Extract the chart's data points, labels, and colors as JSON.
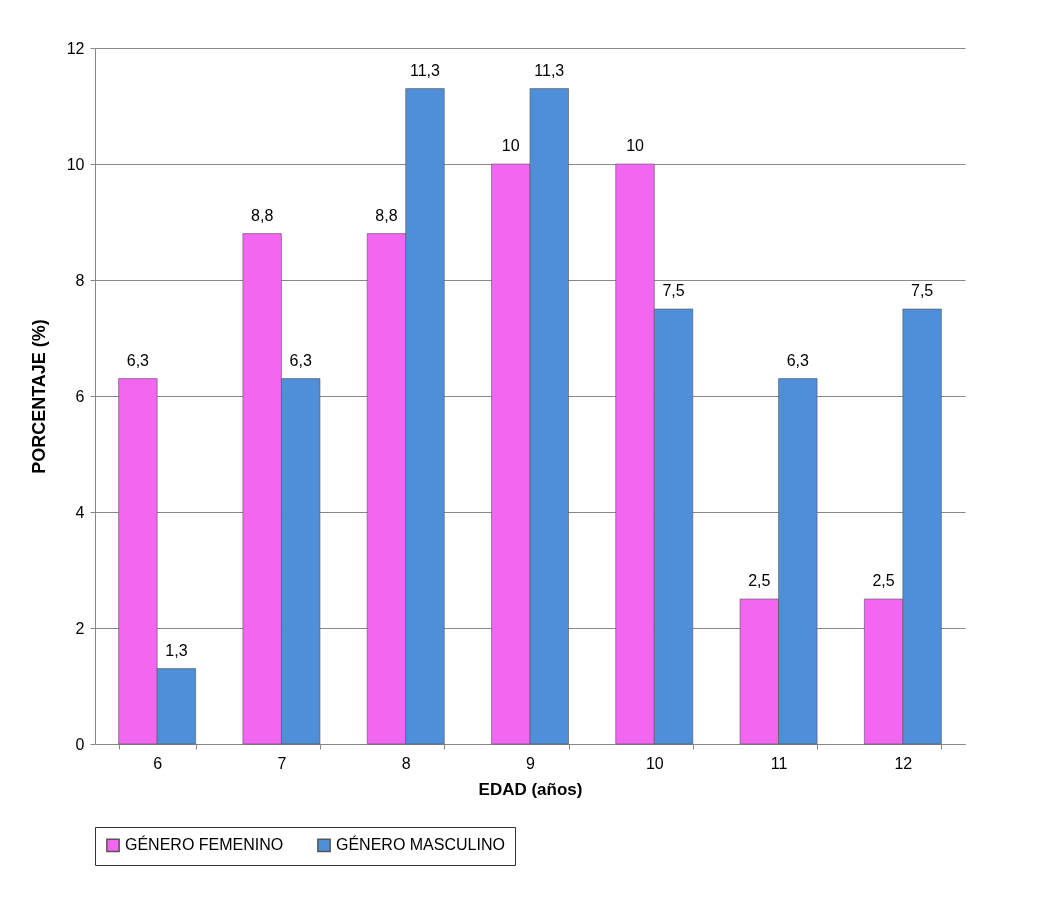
{
  "chart_data": {
    "type": "bar",
    "xlabel": "EDAD  (años)",
    "ylabel": "PORCENTAJE (%)",
    "categories": [
      "6",
      "7",
      "8",
      "9",
      "10",
      "11",
      "12"
    ],
    "series": [
      {
        "name": "GÉNERO FEMENINO",
        "color": "#f266f2",
        "values": [
          6.3,
          8.8,
          8.8,
          10,
          10,
          2.5,
          2.5
        ],
        "value_labels": [
          "6,3",
          "8,8",
          "8,8",
          "10",
          "10",
          "2,5",
          "2,5"
        ]
      },
      {
        "name": "GÉNERO MASCULINO",
        "color": "#4f8fd9",
        "values": [
          1.3,
          6.3,
          11.3,
          11.3,
          7.5,
          6.3,
          7.5
        ],
        "value_labels": [
          "1,3",
          "6,3",
          "11,3",
          "11,3",
          "7,5",
          "6,3",
          "7,5"
        ]
      }
    ],
    "ylim": [
      0,
      12
    ],
    "yticks": [
      0,
      2,
      4,
      6,
      8,
      10,
      12
    ],
    "grid": "y",
    "legend": "bottom"
  }
}
